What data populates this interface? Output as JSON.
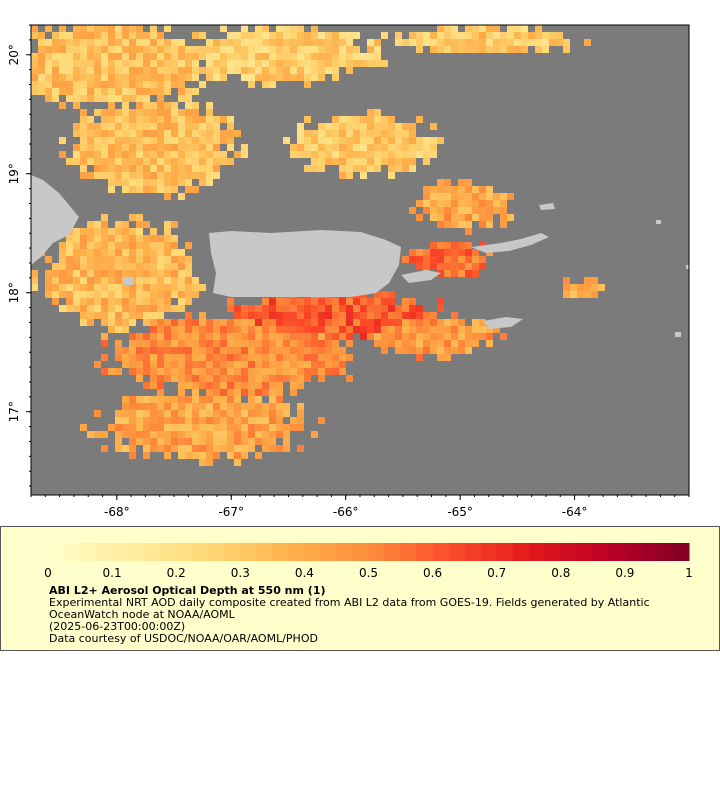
{
  "map": {
    "x_ticks": [
      "-68°",
      "-67°",
      "-66°",
      "-65°",
      "-64°"
    ],
    "x_tick_values": [
      -68,
      -67,
      -66,
      -65,
      -64
    ],
    "y_ticks": [
      "17°",
      "18°",
      "19°",
      "20°"
    ],
    "y_tick_values": [
      17,
      18,
      19,
      20
    ],
    "lon_range": [
      -68.75,
      -63.0
    ],
    "lat_range": [
      16.3,
      20.25
    ],
    "colors": {
      "no_data": "#7b7b7b",
      "land": "#c8c8c8"
    }
  },
  "legend": {
    "colorbar_ticks": [
      "0",
      "0.1",
      "0.2",
      "0.3",
      "0.4",
      "0.5",
      "0.6",
      "0.7",
      "0.8",
      "0.9",
      "1"
    ],
    "colorbar_range": [
      0,
      1
    ],
    "colorbar_colors": [
      "#ffffcc",
      "#ffeda0",
      "#fed976",
      "#feb24c",
      "#fd8d3c",
      "#fc4e2a",
      "#e31a1c",
      "#bd0026",
      "#800026"
    ],
    "title": "ABI L2+ Aerosol Optical Depth at 550 nm (1)",
    "description": "Experimental NRT AOD daily composite created from ABI L2 data from GOES-19. Fields generated by Atlantic OceanWatch node at NOAA/AOML",
    "timestamp": "(2025-06-23T00:00:00Z)",
    "credit": "Data courtesy of USDOC/NOAA/OAR/AOML/PHOD"
  }
}
